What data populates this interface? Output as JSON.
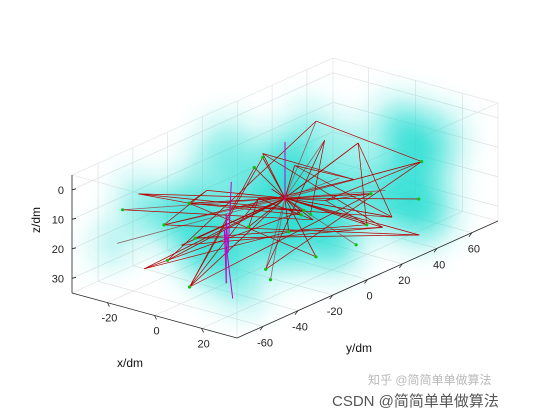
{
  "chart_data": {
    "type": "scatter",
    "projection": "3d",
    "title": "",
    "xlabel": "x/dm",
    "ylabel": "y/dm",
    "zlabel": "z/dm",
    "z_direction": "reversed",
    "xlim": [
      -35,
      35
    ],
    "ylim": [
      -75,
      75
    ],
    "zlim": [
      -5,
      35
    ],
    "x_ticks": [
      -20,
      0,
      20
    ],
    "y_ticks": [
      -60,
      -40,
      -20,
      0,
      20,
      40,
      60
    ],
    "z_ticks": [
      0,
      10,
      20,
      30
    ],
    "grid": true,
    "box": true,
    "colors": {
      "cloud": "#22dcd2",
      "path_main": "#b40000",
      "path_radial": "#8c6464",
      "path_alt": "#c000c8",
      "markers": "#10c010",
      "axis": "#262626",
      "grid": "#dddddd"
    },
    "hub": [
      0,
      0,
      15
    ],
    "node_count": 42,
    "seed": 7
  },
  "watermark": {
    "zhihu": "知乎 @简简单单做算法",
    "csdn": "CSDN @简简单单做算法"
  }
}
